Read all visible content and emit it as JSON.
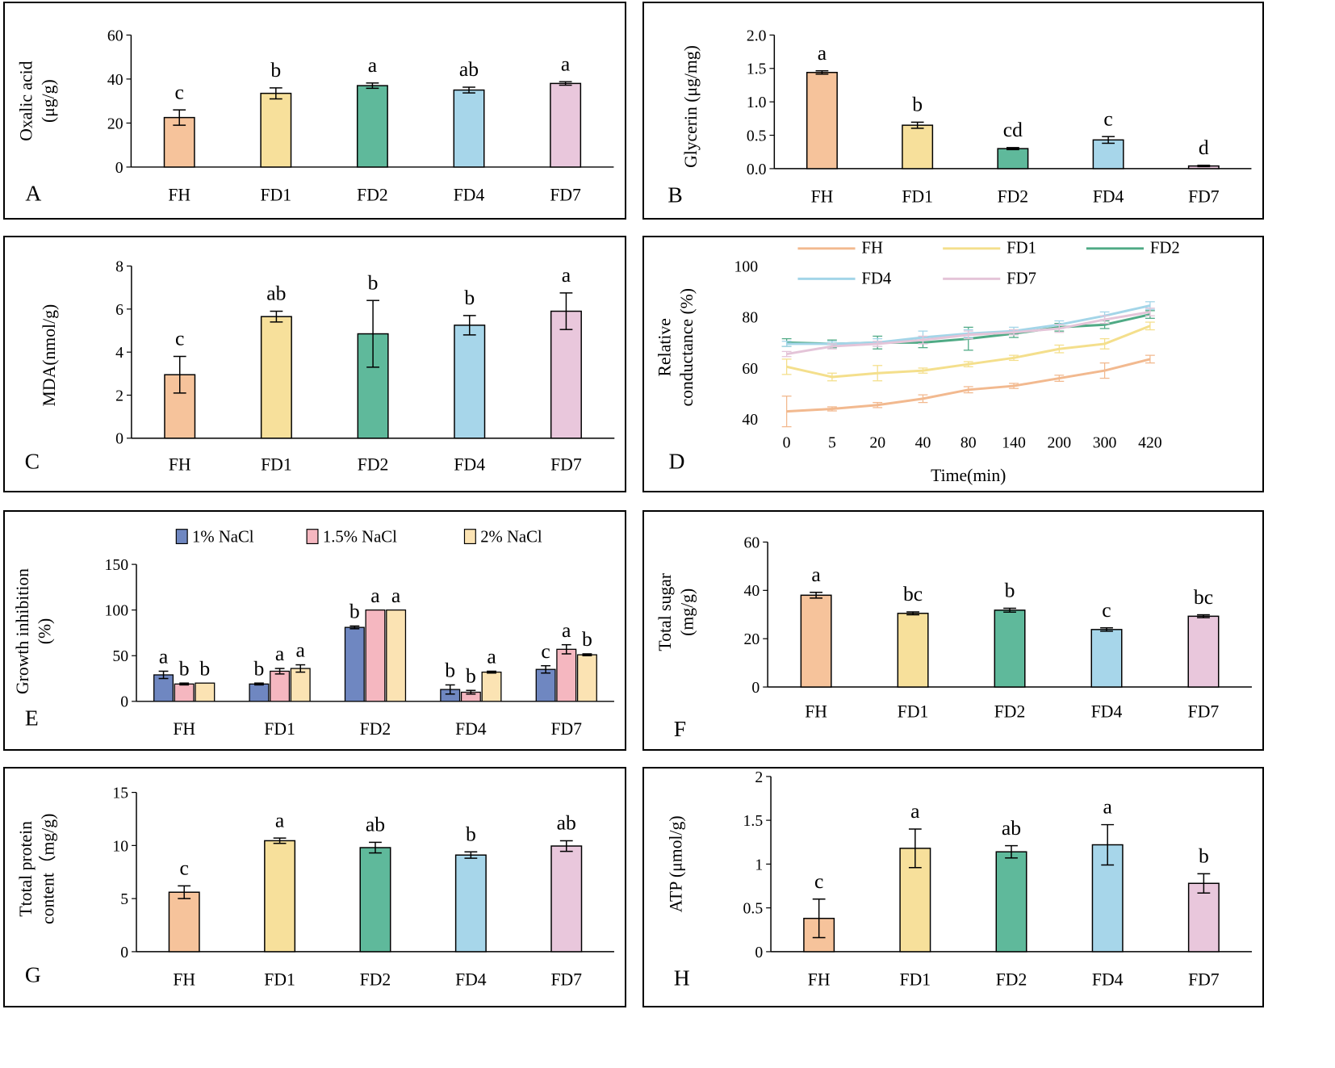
{
  "colors": {
    "FH": "#f6c39b",
    "FD1": "#f7e09b",
    "FD2": "#5fb99b",
    "FD4": "#a7d6ea",
    "FD7": "#e9c7dc",
    "nacl1": "#6f87c1",
    "nacl15": "#f5b7c0",
    "nacl2": "#fbe3b3",
    "line_FH": "#f2b98f",
    "line_FD1": "#f4df8c",
    "line_FD2": "#4faa85",
    "line_FD4": "#a3d5e8",
    "line_FD7": "#e4c4d8"
  },
  "chart_data": [
    {
      "id": "A",
      "type": "bar",
      "panel_label": "A",
      "ylabel": [
        "Oxalic acid",
        "(μg/g)"
      ],
      "categories": [
        "FH",
        "FD1",
        "FD2",
        "FD4",
        "FD7"
      ],
      "values": [
        22.5,
        33.5,
        37,
        35,
        38
      ],
      "errors": [
        3.5,
        2.5,
        1.2,
        1.3,
        0.8
      ],
      "letters": [
        "c",
        "b",
        "a",
        "ab",
        "a"
      ],
      "ylim": [
        0,
        60
      ],
      "yticks": [
        "0",
        "20",
        "40",
        "60"
      ]
    },
    {
      "id": "B",
      "type": "bar",
      "panel_label": "B",
      "ylabel": [
        "Glycerin (μg/mg)"
      ],
      "categories": [
        "FH",
        "FD1",
        "FD2",
        "FD4",
        "FD7"
      ],
      "values": [
        1.44,
        0.65,
        0.3,
        0.43,
        0.04
      ],
      "errors": [
        0.025,
        0.045,
        0.015,
        0.05,
        0.01
      ],
      "letters": [
        "a",
        "b",
        "cd",
        "c",
        "d"
      ],
      "ylim": [
        0,
        2.0
      ],
      "yticks": [
        "0.0",
        "0.5",
        "1.0",
        "1.5",
        "2.0"
      ]
    },
    {
      "id": "C",
      "type": "bar",
      "panel_label": "C",
      "ylabel": [
        "MDA(nmol/g)"
      ],
      "categories": [
        "FH",
        "FD1",
        "FD2",
        "FD4",
        "FD7"
      ],
      "values": [
        2.95,
        5.65,
        4.85,
        5.25,
        5.9
      ],
      "errors": [
        0.85,
        0.25,
        1.55,
        0.45,
        0.85
      ],
      "letters": [
        "c",
        "ab",
        "b",
        "b",
        "a"
      ],
      "ylim": [
        0,
        8
      ],
      "yticks": [
        "0",
        "2",
        "4",
        "6",
        "8"
      ]
    },
    {
      "id": "D",
      "type": "line",
      "panel_label": "D",
      "ylabel": [
        "Relative",
        "conductance (%)"
      ],
      "xlabel": "Time(min)",
      "x": [
        "0",
        "5",
        "20",
        "40",
        "80",
        "140",
        "200",
        "300",
        "420"
      ],
      "ylim": [
        40,
        100
      ],
      "yticks": [
        "40",
        "60",
        "80",
        "100"
      ],
      "series": [
        {
          "name": "FH",
          "values": [
            43,
            44,
            45.5,
            48,
            51.5,
            53,
            56,
            59,
            63.5
          ],
          "errors": [
            6,
            0.8,
            1,
            1.5,
            1.2,
            1,
            1.2,
            3,
            1.5
          ]
        },
        {
          "name": "FD1",
          "values": [
            60.5,
            56.5,
            58,
            59,
            61.5,
            64,
            67.5,
            69.5,
            76.5
          ],
          "errors": [
            3,
            1.5,
            3,
            1,
            1,
            1,
            1.5,
            2,
            1.5
          ]
        },
        {
          "name": "FD2",
          "values": [
            70,
            69.5,
            70,
            70,
            71.5,
            73.5,
            76,
            77,
            81
          ],
          "errors": [
            1.5,
            1.5,
            2.5,
            2,
            4.5,
            1.5,
            1.5,
            1.5,
            1.5
          ]
        },
        {
          "name": "FD4",
          "values": [
            69.5,
            69.5,
            70,
            72,
            73.5,
            74.5,
            77,
            80.5,
            84.5
          ],
          "errors": [
            1,
            1,
            1.5,
            2.5,
            1.5,
            1.5,
            1.5,
            1.5,
            1.5
          ]
        },
        {
          "name": "FD7",
          "values": [
            65.5,
            68.5,
            69.5,
            71,
            73,
            74,
            75.5,
            79,
            82
          ],
          "errors": [
            1,
            1,
            1,
            1.5,
            1.5,
            1,
            1.5,
            1.5,
            1.5
          ]
        }
      ]
    },
    {
      "id": "E",
      "type": "bar",
      "panel_label": "E",
      "ylabel": [
        "Growth inhibition",
        "(%)"
      ],
      "categories": [
        "FH",
        "FD1",
        "FD2",
        "FD4",
        "FD7"
      ],
      "ylim": [
        0,
        150
      ],
      "yticks": [
        "0",
        "50",
        "100",
        "150"
      ],
      "series": [
        {
          "name": "1% NaCl",
          "values": [
            29,
            19,
            81,
            13,
            35
          ],
          "errors": [
            4,
            1,
            1.5,
            5,
            4
          ],
          "letters": [
            "a",
            "b",
            "b",
            "b",
            "c"
          ]
        },
        {
          "name": "1.5% NaCl",
          "values": [
            19,
            33,
            100,
            10,
            57
          ],
          "errors": [
            1,
            3,
            0,
            2,
            5
          ],
          "letters": [
            "b",
            "a",
            "a",
            "b",
            "a"
          ]
        },
        {
          "name": "2% NaCl",
          "values": [
            20,
            36,
            100,
            32,
            51
          ],
          "errors": [
            0,
            4,
            0,
            1,
            1
          ],
          "letters": [
            "b",
            "a",
            "a",
            "a",
            "b"
          ]
        }
      ]
    },
    {
      "id": "F",
      "type": "bar",
      "panel_label": "F",
      "ylabel": [
        "Total sugar",
        "(mg/g)"
      ],
      "categories": [
        "FH",
        "FD1",
        "FD2",
        "FD4",
        "FD7"
      ],
      "values": [
        38,
        30.5,
        31.8,
        23.8,
        29.3
      ],
      "errors": [
        1.2,
        0.6,
        0.8,
        0.7,
        0.6
      ],
      "letters": [
        "a",
        "bc",
        "b",
        "c",
        "bc"
      ],
      "ylim": [
        0,
        60
      ],
      "yticks": [
        "0",
        "20",
        "40",
        "60"
      ]
    },
    {
      "id": "G",
      "type": "bar",
      "panel_label": "G",
      "ylabel": [
        "Ttotal protein",
        "content（mg/g)"
      ],
      "categories": [
        "FH",
        "FD1",
        "FD2",
        "FD4",
        "FD7"
      ],
      "values": [
        5.6,
        10.45,
        9.8,
        9.1,
        9.95
      ],
      "errors": [
        0.6,
        0.25,
        0.5,
        0.3,
        0.5
      ],
      "letters": [
        "c",
        "a",
        "ab",
        "b",
        "ab"
      ],
      "ylim": [
        0,
        15
      ],
      "yticks": [
        "0",
        "5",
        "10",
        "15"
      ]
    },
    {
      "id": "H",
      "type": "bar",
      "panel_label": "H",
      "ylabel": [
        "ATP (μmol/g)"
      ],
      "categories": [
        "FH",
        "FD1",
        "FD2",
        "FD4",
        "FD7"
      ],
      "values": [
        0.38,
        1.18,
        1.14,
        1.22,
        0.78
      ],
      "errors": [
        0.22,
        0.22,
        0.07,
        0.23,
        0.11
      ],
      "letters": [
        "c",
        "a",
        "ab",
        "a",
        "b"
      ],
      "ylim": [
        0,
        2
      ],
      "yticks": [
        "0",
        "0.5",
        "1",
        "1.5",
        "2"
      ]
    }
  ]
}
